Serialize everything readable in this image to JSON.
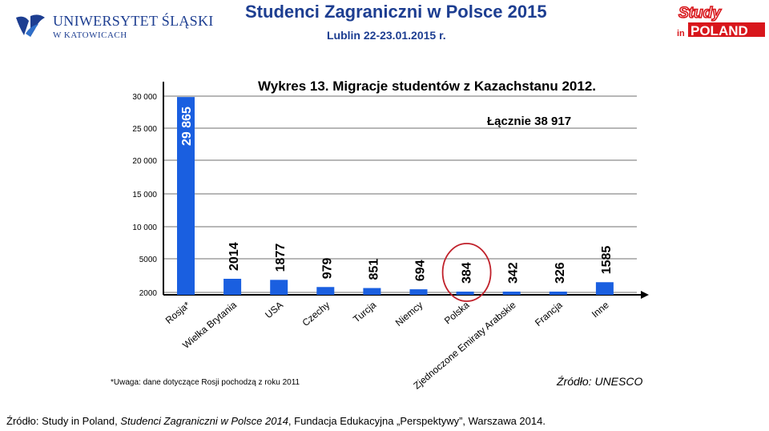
{
  "header": {
    "university_name": "UNIWERSYTET ŚLĄSKI",
    "university_city": "W KATOWICACH",
    "conference_title": "Studenci Zagraniczni w Polsce 2015",
    "conference_date": "Lublin 22-23.01.2015 r.",
    "brand_logo": "Study in POLAND"
  },
  "chart_data": {
    "type": "bar",
    "title": "Wykres 13. Migracje studentów z Kazachstanu 2012.",
    "total_label": "Łącznie 38 917",
    "categories": [
      "Rosja*",
      "Wielka Brytania",
      "USA",
      "Czechy",
      "Turcja",
      "Niemcy",
      "Polska",
      "Zjednoczone Emiraty Arabskie",
      "Francja",
      "Inne"
    ],
    "values": [
      29865,
      2014,
      1877,
      979,
      851,
      694,
      384,
      342,
      326,
      1585
    ],
    "data_labels": [
      "29 865",
      "2014",
      "1877",
      "979",
      "851",
      "694",
      "384",
      "342",
      "326",
      "1585"
    ],
    "yticks": [
      "30 000",
      "25 000",
      "20 000",
      "15 000",
      "10 000",
      "5000",
      "2000"
    ],
    "ytick_values": [
      30000,
      25000,
      20000,
      15000,
      10000,
      5000,
      2000
    ],
    "ylim": [
      0,
      30000
    ],
    "highlighted_category": "Polska",
    "note": "*Uwaga: dane dotyczące Rosji pochodzą z roku 2011",
    "source": "Źródło: UNESCO",
    "grid": true,
    "bar_color": "#1a5fe0",
    "highlight_color": "#c0202a"
  },
  "footer": {
    "prefix": "Źródło: Study in Poland, ",
    "italic": "Studenci Zagraniczni w Polsce 2014",
    "suffix": ", Fundacja Edukacyjna „Perspektywy”, Warszawa 2014."
  }
}
